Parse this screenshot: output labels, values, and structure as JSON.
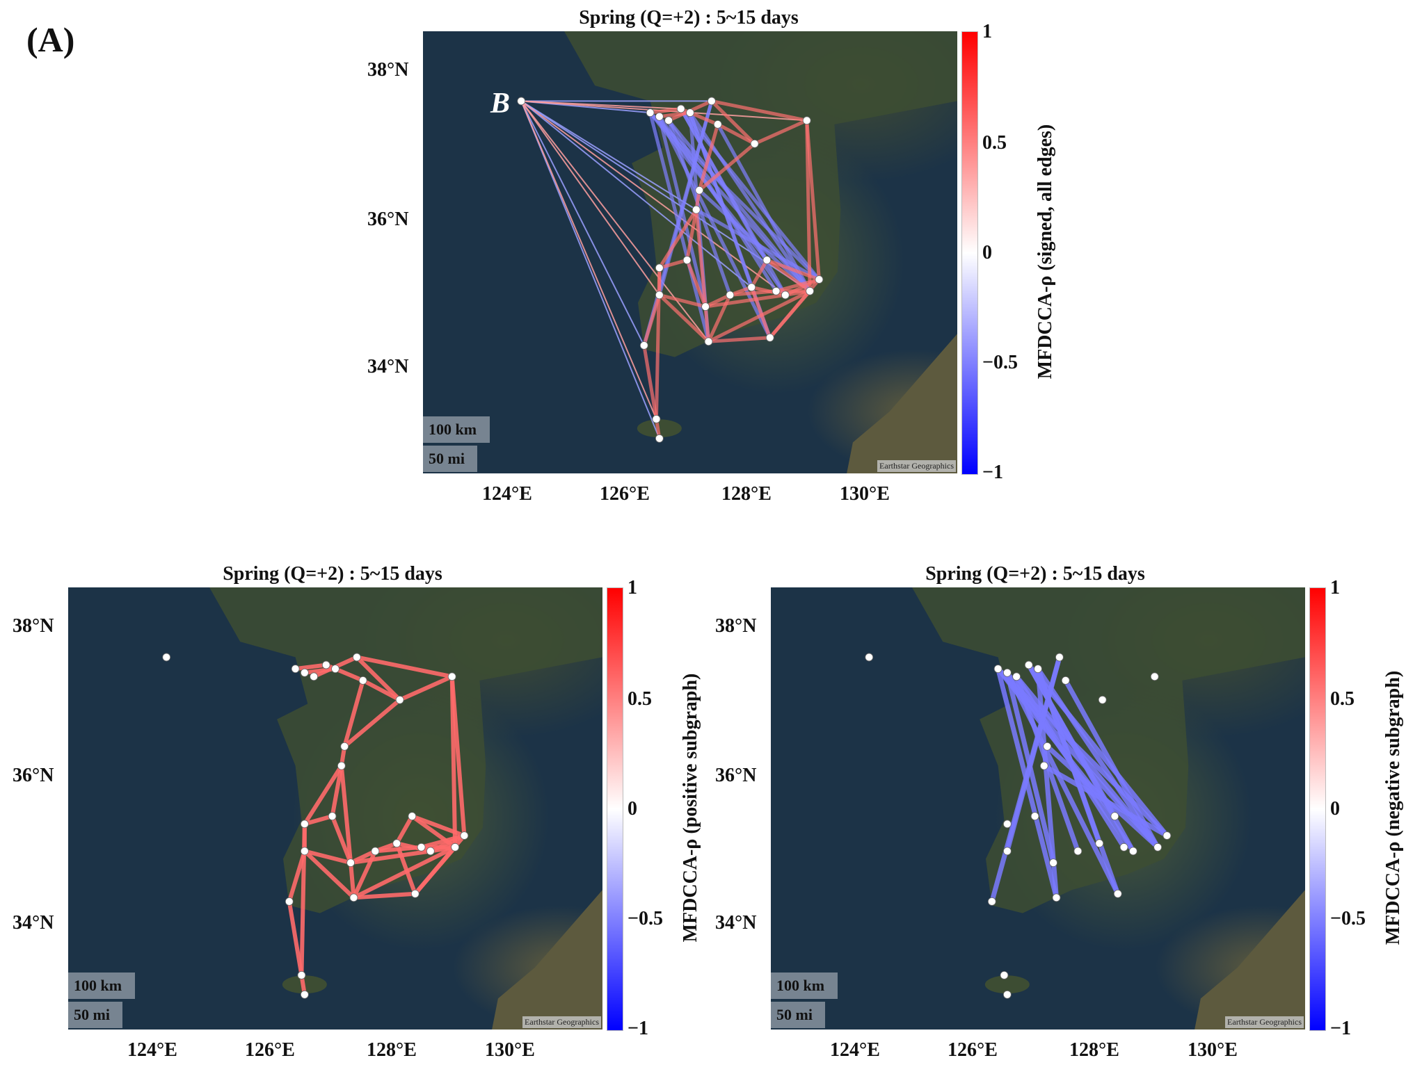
{
  "panel_label": "(A)",
  "attribution": "Earthstar Geographics",
  "scale": {
    "km": "100 km",
    "mi": "50 mi"
  },
  "lat_ticks": [
    "38°N",
    "36°N",
    "34°N"
  ],
  "lon_ticks": [
    "124°E",
    "126°E",
    "128°E",
    "130°E"
  ],
  "colorbar_ticks": [
    "1",
    "0.5",
    "0",
    "−0.5",
    "−1"
  ],
  "colors": {
    "positive": "#ff0000",
    "zero": "#ffffff",
    "negative": "#0000ff",
    "ocean": "#1c3347"
  },
  "station_b_label": "B",
  "maps": [
    {
      "title": "Spring (Q=+2) : 5~15 days",
      "colorbar_label": "MFDCCA-ρ (signed, all edges)",
      "edges": "all"
    },
    {
      "title": "Spring (Q=+2) : 5~15 days",
      "colorbar_label": "MFDCCA-ρ (positive subgraph)",
      "edges": "positive"
    },
    {
      "title": "Spring (Q=+2) : 5~15 days",
      "colorbar_label": "MFDCCA-ρ (negative subgraph)",
      "edges": "negative"
    }
  ],
  "chart_data": {
    "type": "network-map",
    "extent": {
      "lon": [
        122.7,
        131.4
      ],
      "lat": [
        32.8,
        38.5
      ]
    },
    "colorbar_range": [
      -1,
      1
    ],
    "stations": [
      {
        "id": "B",
        "lon": 124.3,
        "lat": 37.6
      },
      {
        "id": "s1",
        "lon": 126.4,
        "lat": 37.45
      },
      {
        "id": "s2",
        "lon": 126.55,
        "lat": 37.4
      },
      {
        "id": "s3",
        "lon": 126.7,
        "lat": 37.35
      },
      {
        "id": "s4",
        "lon": 126.9,
        "lat": 37.5
      },
      {
        "id": "s5",
        "lon": 127.05,
        "lat": 37.45
      },
      {
        "id": "s6",
        "lon": 127.4,
        "lat": 37.6
      },
      {
        "id": "s7",
        "lon": 127.5,
        "lat": 37.3
      },
      {
        "id": "s8",
        "lon": 128.1,
        "lat": 37.05
      },
      {
        "id": "s9",
        "lon": 128.95,
        "lat": 37.35
      },
      {
        "id": "s10",
        "lon": 127.2,
        "lat": 36.45
      },
      {
        "id": "s11",
        "lon": 127.15,
        "lat": 36.2
      },
      {
        "id": "s12",
        "lon": 126.55,
        "lat": 35.45
      },
      {
        "id": "s13",
        "lon": 126.55,
        "lat": 35.1
      },
      {
        "id": "s14",
        "lon": 126.3,
        "lat": 34.45
      },
      {
        "id": "s15",
        "lon": 127.0,
        "lat": 35.55
      },
      {
        "id": "s16",
        "lon": 127.3,
        "lat": 34.95
      },
      {
        "id": "s17",
        "lon": 127.35,
        "lat": 34.5
      },
      {
        "id": "s18",
        "lon": 127.7,
        "lat": 35.1
      },
      {
        "id": "s19",
        "lon": 128.05,
        "lat": 35.2
      },
      {
        "id": "s20",
        "lon": 128.3,
        "lat": 35.55
      },
      {
        "id": "s21",
        "lon": 128.45,
        "lat": 35.15
      },
      {
        "id": "s22",
        "lon": 128.6,
        "lat": 35.1
      },
      {
        "id": "s23",
        "lon": 128.35,
        "lat": 34.55
      },
      {
        "id": "s24",
        "lon": 129.0,
        "lat": 35.15
      },
      {
        "id": "s25",
        "lon": 129.15,
        "lat": 35.3
      },
      {
        "id": "s26",
        "lon": 126.5,
        "lat": 33.5
      },
      {
        "id": "s27",
        "lon": 126.55,
        "lat": 33.25
      }
    ],
    "positive_edges": [
      [
        "s1",
        "s4"
      ],
      [
        "s2",
        "s5"
      ],
      [
        "s3",
        "s6"
      ],
      [
        "s4",
        "s7"
      ],
      [
        "s6",
        "s9"
      ],
      [
        "s7",
        "s8"
      ],
      [
        "s8",
        "s9"
      ],
      [
        "s6",
        "s8"
      ],
      [
        "s7",
        "s10"
      ],
      [
        "s8",
        "s10"
      ],
      [
        "s10",
        "s11"
      ],
      [
        "s11",
        "s15"
      ],
      [
        "s11",
        "s12"
      ],
      [
        "s11",
        "s16"
      ],
      [
        "s12",
        "s13"
      ],
      [
        "s12",
        "s15"
      ],
      [
        "s13",
        "s14"
      ],
      [
        "s14",
        "s26"
      ],
      [
        "s26",
        "s27"
      ],
      [
        "s13",
        "s16"
      ],
      [
        "s15",
        "s16"
      ],
      [
        "s16",
        "s17"
      ],
      [
        "s16",
        "s18"
      ],
      [
        "s17",
        "s18"
      ],
      [
        "s17",
        "s23"
      ],
      [
        "s18",
        "s19"
      ],
      [
        "s18",
        "s21"
      ],
      [
        "s19",
        "s20"
      ],
      [
        "s19",
        "s22"
      ],
      [
        "s20",
        "s24"
      ],
      [
        "s21",
        "s24"
      ],
      [
        "s22",
        "s24"
      ],
      [
        "s22",
        "s25"
      ],
      [
        "s23",
        "s24"
      ],
      [
        "s23",
        "s25"
      ],
      [
        "s20",
        "s25"
      ],
      [
        "s9",
        "s24"
      ],
      [
        "s9",
        "s25"
      ],
      [
        "s17",
        "s24"
      ],
      [
        "s16",
        "s22"
      ],
      [
        "s13",
        "s17"
      ],
      [
        "s12",
        "s26"
      ],
      [
        "s19",
        "s23"
      ],
      [
        "s21",
        "s25"
      ]
    ],
    "negative_edges": [
      [
        "s1",
        "s24"
      ],
      [
        "s1",
        "s25"
      ],
      [
        "s2",
        "s22"
      ],
      [
        "s2",
        "s23"
      ],
      [
        "s3",
        "s24"
      ],
      [
        "s3",
        "s21"
      ],
      [
        "s4",
        "s22"
      ],
      [
        "s4",
        "s25"
      ],
      [
        "s5",
        "s24"
      ],
      [
        "s5",
        "s17"
      ],
      [
        "s6",
        "s14"
      ],
      [
        "s6",
        "s13"
      ],
      [
        "s1",
        "s17"
      ],
      [
        "s2",
        "s16"
      ],
      [
        "s3",
        "s18"
      ],
      [
        "s4",
        "s20"
      ],
      [
        "s5",
        "s19"
      ],
      [
        "s7",
        "s24"
      ],
      [
        "s10",
        "s24"
      ],
      [
        "s11",
        "s25"
      ],
      [
        "s1",
        "s20"
      ],
      [
        "s5",
        "s23"
      ]
    ],
    "b_edges": [
      [
        "B",
        "s1"
      ],
      [
        "B",
        "s4"
      ],
      [
        "B",
        "s6"
      ],
      [
        "B",
        "s9"
      ],
      [
        "B",
        "s11"
      ],
      [
        "B",
        "s13"
      ],
      [
        "B",
        "s14"
      ],
      [
        "B",
        "s17"
      ],
      [
        "B",
        "s19"
      ],
      [
        "B",
        "s22"
      ],
      [
        "B",
        "s24"
      ],
      [
        "B",
        "s26"
      ],
      [
        "B",
        "s27"
      ]
    ]
  }
}
